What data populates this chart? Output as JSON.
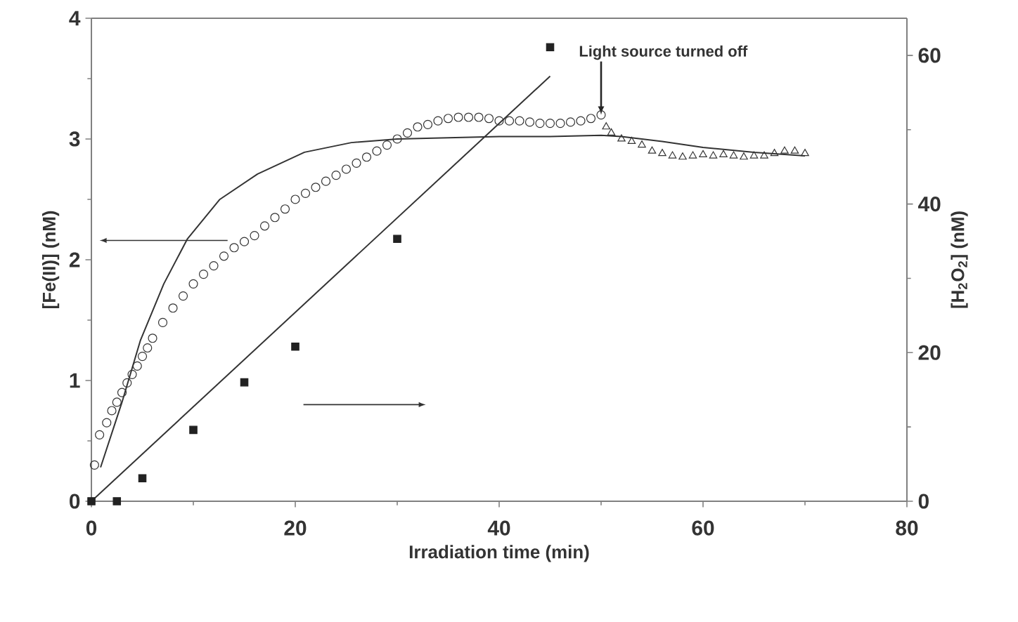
{
  "chart_data": {
    "type": "scatter",
    "xlabel": "Irradiation time (min)",
    "ylabel": "[Fe(II)] (nM)",
    "y2label": "[H$_{2}$O$_{2}$] (nM)",
    "xlim": [
      0,
      80
    ],
    "xticks": [
      0,
      20,
      40,
      60,
      80
    ],
    "ylim": [
      0,
      4
    ],
    "yticks": [
      0,
      1,
      2,
      3,
      4
    ],
    "y2lim": [
      0,
      65
    ],
    "y2ticks": [
      0,
      20,
      40,
      60
    ],
    "grid": false,
    "annotations": [
      {
        "text": "Light source turned off",
        "x": 50,
        "y": 3.2
      }
    ],
    "series": [
      {
        "marker": "circle",
        "color": "#333333",
        "axis": "y",
        "x": [
          0.3,
          0.8,
          1.5,
          2,
          2.5,
          3,
          3.5,
          4,
          4.5,
          5,
          5.5,
          6,
          7,
          8,
          9,
          10,
          11,
          12,
          13,
          14,
          15,
          16,
          17,
          18,
          19,
          20,
          21,
          22,
          23,
          24,
          25,
          26,
          27,
          28,
          29,
          30,
          31,
          32,
          33,
          34,
          35,
          36,
          37,
          38,
          39,
          40,
          41,
          42,
          43,
          44,
          45,
          46,
          47,
          48,
          49,
          50
        ],
        "values": [
          0.3,
          0.55,
          0.65,
          0.75,
          0.82,
          0.9,
          0.98,
          1.05,
          1.12,
          1.2,
          1.27,
          1.35,
          1.48,
          1.6,
          1.7,
          1.8,
          1.88,
          1.95,
          2.03,
          2.1,
          2.15,
          2.2,
          2.28,
          2.35,
          2.42,
          2.5,
          2.55,
          2.6,
          2.65,
          2.7,
          2.75,
          2.8,
          2.85,
          2.9,
          2.95,
          3.0,
          3.05,
          3.1,
          3.12,
          3.15,
          3.17,
          3.18,
          3.18,
          3.18,
          3.17,
          3.15,
          3.15,
          3.15,
          3.14,
          3.13,
          3.13,
          3.13,
          3.14,
          3.15,
          3.17,
          3.2
        ]
      },
      {
        "marker": "triangle",
        "color": "#333333",
        "axis": "y",
        "x": [
          50.5,
          51,
          52,
          53,
          54,
          55,
          56,
          57,
          58,
          59,
          60,
          61,
          62,
          63,
          64,
          65,
          66,
          67,
          68,
          69,
          70
        ],
        "values": [
          3.1,
          3.05,
          3.0,
          2.98,
          2.95,
          2.9,
          2.88,
          2.86,
          2.85,
          2.86,
          2.87,
          2.86,
          2.87,
          2.86,
          2.85,
          2.86,
          2.86,
          2.88,
          2.9,
          2.9,
          2.88
        ]
      },
      {
        "type": "line",
        "marker": "none",
        "line_style": "solid",
        "color": "#333333",
        "axis": "y",
        "x": [
          0.9,
          3,
          4.8,
          7.1,
          9.4,
          12.6,
          16.3,
          20.9,
          25.5,
          30,
          35,
          40,
          45,
          50,
          52,
          56,
          60,
          65,
          70
        ],
        "values": [
          0.28,
          0.82,
          1.33,
          1.8,
          2.17,
          2.5,
          2.71,
          2.89,
          2.97,
          3.0,
          3.01,
          3.02,
          3.02,
          3.03,
          3.02,
          2.98,
          2.93,
          2.89,
          2.86
        ]
      },
      {
        "marker": "square",
        "color": "#222222",
        "axis": "y2",
        "x": [
          0,
          2.5,
          5,
          10,
          15,
          20,
          30,
          45
        ],
        "values": [
          0,
          0,
          3.1,
          9.6,
          16,
          20.8,
          35.3,
          61.1
        ]
      },
      {
        "type": "line",
        "marker": "none",
        "line_style": "solid",
        "color": "#333333",
        "axis": "y2",
        "x": [
          0,
          45
        ],
        "values": [
          0,
          57.2
        ]
      }
    ]
  }
}
